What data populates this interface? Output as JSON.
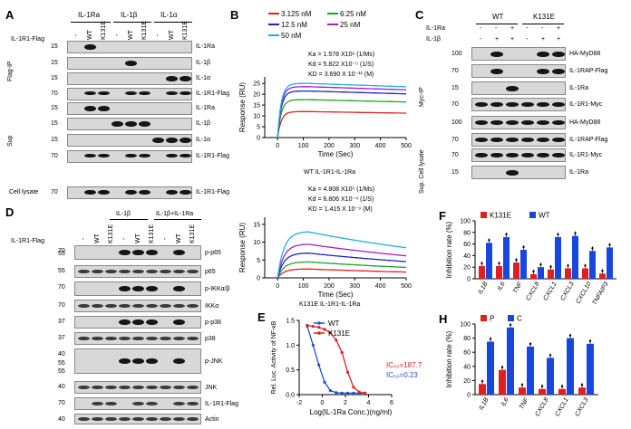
{
  "panels": {
    "A": "A",
    "B": "B",
    "C": "C",
    "D": "D",
    "E": "E",
    "F": "F",
    "H": "H"
  },
  "A": {
    "ligands": [
      "IL-1Ra",
      "IL-1β",
      "IL-1α"
    ],
    "row_label": "IL-1R1-Flag",
    "lanes": [
      "-",
      "WT",
      "K131E",
      "-",
      "WT",
      "K131E",
      "-",
      "WT",
      "K131E"
    ],
    "section_ip": "Flag-IP",
    "section_sup": "Sup",
    "section_lysate": "Cell lysate",
    "blots": [
      {
        "mw": "15",
        "label": "IL-1Ra"
      },
      {
        "mw": "15",
        "label": "IL-1β"
      },
      {
        "mw": "15",
        "label": "IL-1α"
      },
      {
        "mw": "70",
        "label": "IL-1R1-Flag"
      },
      {
        "mw": "15",
        "label": "IL-1Ra"
      },
      {
        "mw": "15",
        "label": "IL-1β"
      },
      {
        "mw": "15",
        "label": "IL-1α"
      },
      {
        "mw": "70",
        "label": "IL-1R1-Flag"
      }
    ]
  },
  "B": {
    "legend": [
      "3.125 nM",
      "6.25 nM",
      "12.5 nM",
      "25 nM",
      "50 nM"
    ],
    "legend_colors": [
      "#e02020",
      "#20a030",
      "#2020d0",
      "#a020c0",
      "#20b0e0"
    ],
    "ylabel": "Response (RU)",
    "xlabel": "Time (Sec)",
    "xticks": [
      "0",
      "100",
      "200",
      "300",
      "400",
      "500"
    ],
    "top": {
      "ka": "Ka = 1.578 X10⁶ (1/Ms)",
      "kd": "Kd = 5.822 X10⁻⁵ (1/S)",
      "KD": "KD = 3.690 X 10⁻¹¹ (M)",
      "yticks": [
        "0",
        "5",
        "10",
        "15",
        "20",
        "25"
      ],
      "title": "WT IL-1R1-IL-1Ra"
    },
    "bottom": {
      "ka": "Ka = 4.808 X10⁵ (1/Ms)",
      "kd": "Kd = 6.806 X10⁻⁴ (1/S)",
      "KD": "KD = 1.415 X 10⁻⁹ (M)",
      "yticks": [
        "0",
        "5",
        "10",
        "15"
      ],
      "title": "K131E IL-1R1-IL-1Ra"
    }
  },
  "C": {
    "treat1": "IL-1Ra",
    "treat2": "IL-1β",
    "groups": [
      "WT",
      "K131E"
    ],
    "signs1": [
      "-",
      "-",
      "+",
      "-",
      "-",
      "+"
    ],
    "signs2": [
      "-",
      "+",
      "+",
      "-",
      "+",
      "+"
    ],
    "section_ip": "Myc-IP",
    "section_sup": "Sup. Cell lysate",
    "blots": [
      {
        "mw": "100",
        "label": "HA-MyD88"
      },
      {
        "mw": "70",
        "label": "IL-1RAP-Flag"
      },
      {
        "mw": "15",
        "label": "IL-1Ra"
      },
      {
        "mw": "70",
        "label": "IL-1R1-Myc"
      },
      {
        "mw": "100",
        "label": "HA-MyD88"
      },
      {
        "mw": "70",
        "label": "IL-1RAP-Flag"
      },
      {
        "mw": "70",
        "label": "IL-1R1-Myc"
      },
      {
        "mw": "15",
        "label": "IL-1Ra"
      }
    ]
  },
  "D": {
    "header_b": "IL-1β",
    "header_bra": "IL-1β+IL-1Ra",
    "row_label": "IL-1R1-Flag",
    "lanes": [
      "-",
      "WT",
      "K131E",
      "-",
      "WT",
      "K131E",
      "-",
      "WT",
      "K131E"
    ],
    "blots": [
      {
        "mw": "70",
        "label": "p-p65"
      },
      {
        "mw": "55",
        "label": "p65"
      },
      {
        "mw": "70",
        "label": "p-IKKα/β"
      },
      {
        "mw": "70",
        "label": "IKKα"
      },
      {
        "mw": "37",
        "label": "p-p38"
      },
      {
        "mw": "37",
        "label": "p38"
      },
      {
        "mw": "40",
        "label": "p-JNK"
      },
      {
        "mw": "40",
        "label": "JNK"
      },
      {
        "mw": "70",
        "label": "IL-1R1-Flag"
      },
      {
        "mw": "40",
        "label": "Actin"
      }
    ],
    "extra_mw": [
      "55",
      "55",
      "55"
    ]
  },
  "E": {
    "legend": [
      "WT",
      "K131E"
    ],
    "colors": [
      "#2050d0",
      "#e02020"
    ],
    "ylabel": "Rel. Luc. Activity of NF-κB",
    "xlabel": "Log(IL-1Ra Conc.)(ng/ml)",
    "xticks": [
      "-2",
      "0",
      "2",
      "4",
      "6"
    ],
    "yticks": [
      "0.0",
      "0.5",
      "1.0",
      "1.5"
    ],
    "ic50_red": "IC₅₀=187.7",
    "ic50_blue": "IC₅₀=0.23"
  },
  "chart_data": [
    {
      "type": "line",
      "panel": "E",
      "xlabel": "Log(IL-1Ra Conc.)(ng/ml)",
      "ylabel": "Rel. Luc. Activity of NF-κB",
      "xlim": [
        -2,
        6
      ],
      "ylim": [
        0,
        1.5
      ],
      "series": [
        {
          "name": "WT",
          "x": [
            -1.3,
            -0.8,
            -0.3,
            0.2,
            0.7,
            1.2,
            1.7,
            2.2,
            2.7,
            3.2,
            3.7
          ],
          "y": [
            1.38,
            1.0,
            0.6,
            0.25,
            0.08,
            0.04,
            0.03,
            0.03,
            0.03,
            0.03,
            0.03
          ]
        },
        {
          "name": "K131E",
          "x": [
            -1.3,
            -0.8,
            -0.3,
            0.2,
            0.7,
            1.2,
            1.7,
            2.2,
            2.7,
            3.2,
            3.7
          ],
          "y": [
            1.4,
            1.38,
            1.36,
            1.32,
            1.25,
            1.1,
            0.85,
            0.45,
            0.15,
            0.05,
            0.03
          ]
        }
      ]
    },
    {
      "type": "bar",
      "panel": "F",
      "ylabel": "Inhibition rate (%)",
      "ylim": [
        0,
        100
      ],
      "categories": [
        "IL1B",
        "IL6",
        "TNF",
        "CXCL8",
        "CXCL1",
        "CXCL3",
        "CXCL10",
        "TNFAIP3"
      ],
      "series": [
        {
          "name": "K131E",
          "values": [
            22,
            22,
            28,
            8,
            16,
            18,
            18,
            9
          ]
        },
        {
          "name": "WT",
          "values": [
            62,
            72,
            50,
            20,
            72,
            74,
            48,
            54
          ]
        }
      ]
    },
    {
      "type": "bar",
      "panel": "H",
      "ylabel": "Inhibition rate (%)",
      "ylim": [
        0,
        100
      ],
      "categories": [
        "IL1B",
        "IL6",
        "TNF",
        "CXCL8",
        "CXCL1",
        "CXCL3"
      ],
      "series": [
        {
          "name": "P",
          "values": [
            15,
            35,
            10,
            8,
            8,
            10
          ]
        },
        {
          "name": "C",
          "values": [
            75,
            95,
            68,
            52,
            80,
            72
          ]
        }
      ]
    }
  ],
  "F": {
    "legend": [
      "K131E",
      "WT"
    ],
    "colors": [
      "#e02020",
      "#1a46e0"
    ],
    "ylabel": "Inhibition rate (%)",
    "yticks": [
      "0",
      "20",
      "40",
      "60",
      "80",
      "100"
    ],
    "categories": [
      "IL1B",
      "IL6",
      "TNF",
      "CXCL8",
      "CXCL1",
      "CXCL3",
      "CXCL10",
      "TNFAIP3"
    ]
  },
  "H": {
    "legend": [
      "P",
      "C"
    ],
    "colors": [
      "#e02020",
      "#1a46e0"
    ],
    "ylabel": "Inhibition rate (%)",
    "yticks": [
      "0",
      "20",
      "40",
      "60",
      "80",
      "100"
    ],
    "categories": [
      "IL1B",
      "IL6",
      "TNF",
      "CXCL8",
      "CXCL1",
      "CXCL3"
    ]
  }
}
